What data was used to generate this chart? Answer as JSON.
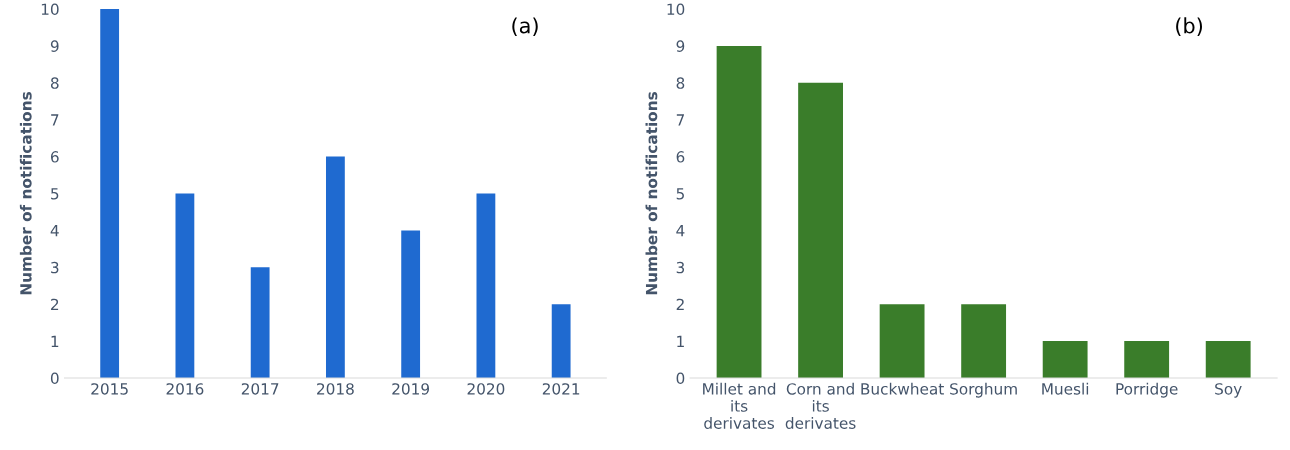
{
  "chart_data": [
    {
      "type": "bar",
      "annotations": [
        "(a)"
      ],
      "ylabel": "Number of notifications",
      "categories": [
        "2015",
        "2016",
        "2017",
        "2018",
        "2019",
        "2020",
        "2021"
      ],
      "values": [
        10,
        5,
        3,
        6,
        4,
        5,
        2
      ],
      "color": "#1f6ad0",
      "ylim": [
        0,
        10
      ],
      "yticks": [
        0,
        1,
        2,
        3,
        4,
        5,
        6,
        7,
        8,
        9,
        10
      ],
      "grid": false,
      "legend": false
    },
    {
      "type": "bar",
      "annotations": [
        "(b)"
      ],
      "ylabel": "Number of notifications",
      "categories": [
        "Millet and\nits\nderivates",
        "Corn and\nits\nderivates",
        "Buckwheat",
        "Sorghum",
        "Muesli",
        "Porridge",
        "Soy"
      ],
      "values": [
        9,
        8,
        2,
        2,
        1,
        1,
        1
      ],
      "color": "#3a7d2a",
      "ylim": [
        0,
        10
      ],
      "yticks": [
        0,
        1,
        2,
        3,
        4,
        5,
        6,
        7,
        8,
        9,
        10
      ],
      "grid": false,
      "legend": false
    }
  ]
}
